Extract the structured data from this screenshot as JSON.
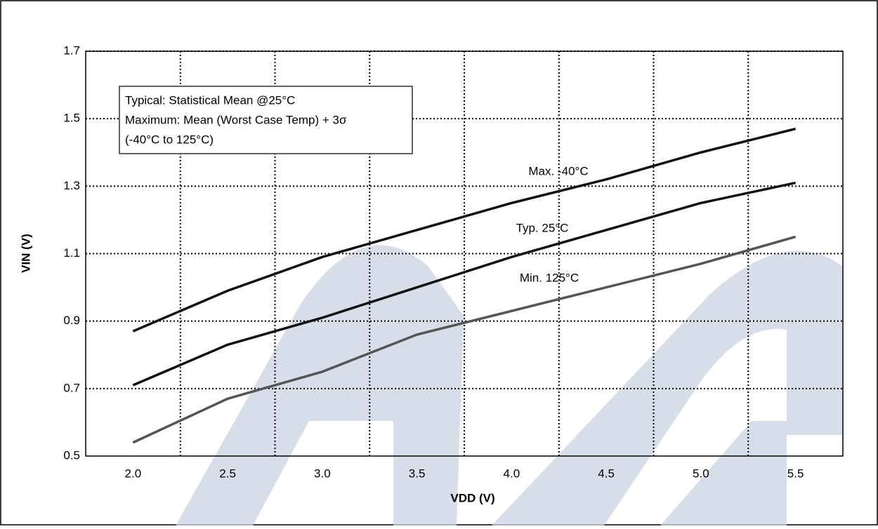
{
  "chart_data": {
    "type": "line",
    "ylabel": "VIN (V)",
    "xlabel": "VDD (V)",
    "legend_lines": [
      "Typical: Statistical Mean @25°C",
      "Maximum: Mean (Worst Case Temp) + 3σ",
      "(-40°C to 125°C)"
    ],
    "x": [
      2.0,
      2.5,
      3.0,
      3.5,
      4.0,
      4.5,
      5.0,
      5.5
    ],
    "xlim": [
      1.75,
      5.75
    ],
    "xticks": [
      {
        "value": 2.0,
        "label": "2.0"
      },
      {
        "value": 2.5,
        "label": "2.5"
      },
      {
        "value": 3.0,
        "label": "3.0"
      },
      {
        "value": 3.5,
        "label": "3.5"
      },
      {
        "value": 4.0,
        "label": "4.0"
      },
      {
        "value": 4.5,
        "label": "4.5"
      },
      {
        "value": 5.0,
        "label": "5.0"
      },
      {
        "value": 5.5,
        "label": "5.5"
      }
    ],
    "xgrid": [
      2.25,
      2.75,
      3.25,
      3.75,
      4.25,
      4.75,
      5.25
    ],
    "ylim": [
      0.5,
      1.7
    ],
    "yticks": [
      0.5,
      0.7,
      0.9,
      1.1,
      1.3,
      1.5,
      1.7
    ],
    "grid": true,
    "series": [
      {
        "name": "Max. -40°C",
        "color": "#111111",
        "values": [
          0.87,
          0.99,
          1.09,
          1.17,
          1.25,
          1.32,
          1.4,
          1.47
        ]
      },
      {
        "name": "Typ. 25°C",
        "color": "#111111",
        "values": [
          0.71,
          0.83,
          0.91,
          1.0,
          1.09,
          1.17,
          1.25,
          1.31
        ]
      },
      {
        "name": "Min. 125°C",
        "color": "#555555",
        "values": [
          0.54,
          0.67,
          0.75,
          0.86,
          0.93,
          1.0,
          1.07,
          1.15
        ]
      }
    ]
  }
}
